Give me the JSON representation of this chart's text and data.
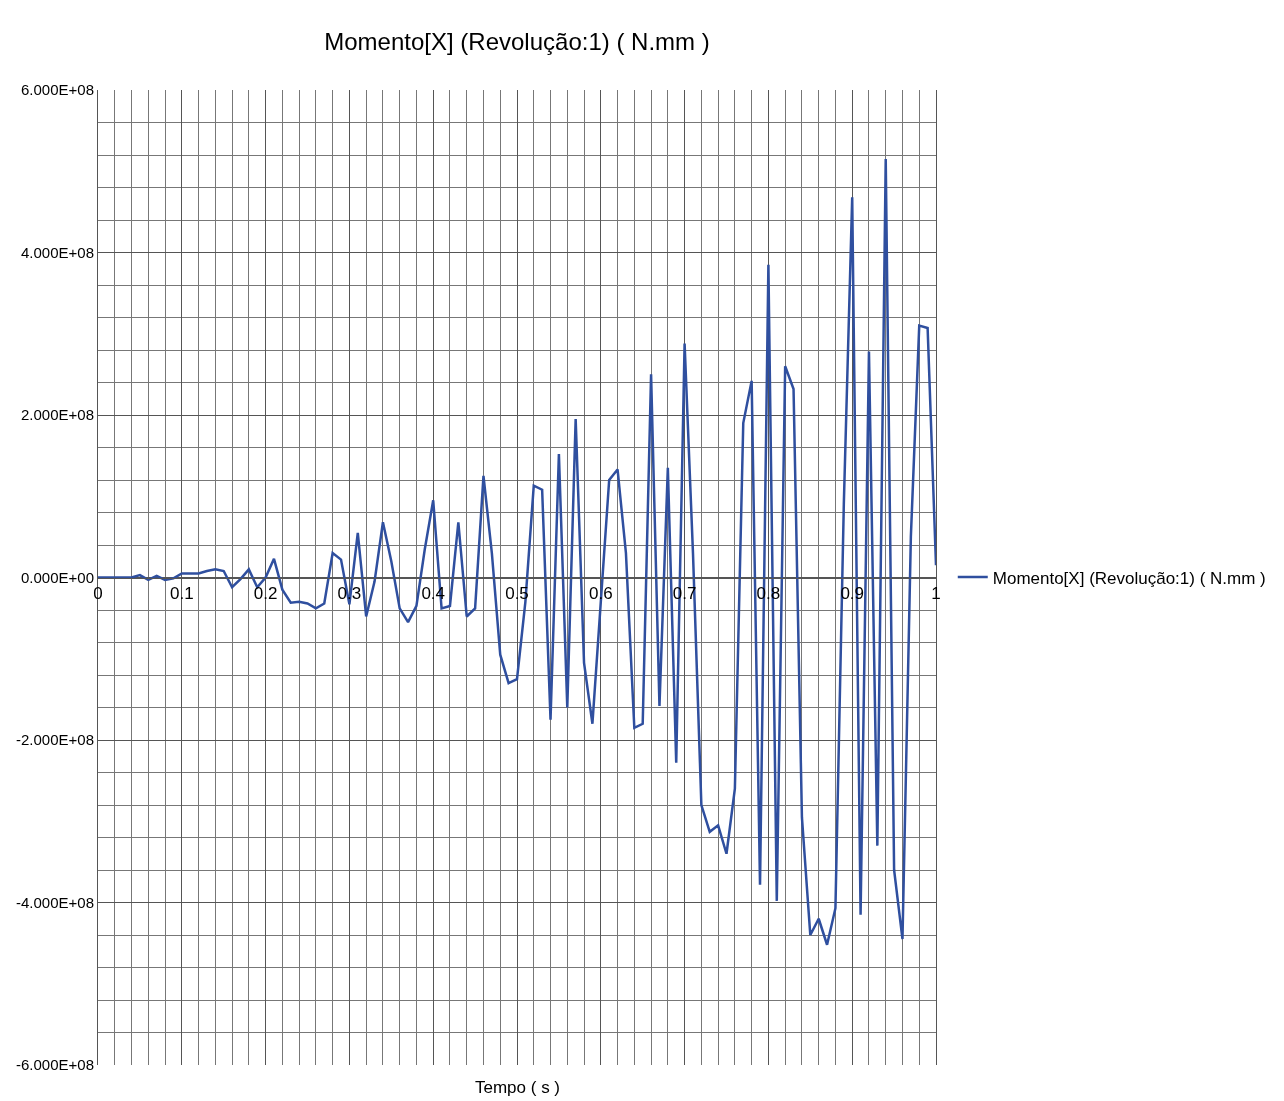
{
  "chart_data": {
    "type": "line",
    "title": "Momento[X] (Revolução:1) ( N.mm )",
    "xlabel": "Tempo ( s )",
    "x": [
      0,
      0.01,
      0.02,
      0.03,
      0.04,
      0.05,
      0.06,
      0.07,
      0.08,
      0.09,
      0.1,
      0.11,
      0.12,
      0.13,
      0.14,
      0.15,
      0.16,
      0.17,
      0.18,
      0.19,
      0.2,
      0.21,
      0.22,
      0.23,
      0.24,
      0.25,
      0.26,
      0.27,
      0.28,
      0.29,
      0.3,
      0.31,
      0.32,
      0.33,
      0.34,
      0.35,
      0.36,
      0.37,
      0.38,
      0.39,
      0.4,
      0.41,
      0.42,
      0.43,
      0.44,
      0.45,
      0.46,
      0.47,
      0.48,
      0.49,
      0.5,
      0.51,
      0.52,
      0.53,
      0.54,
      0.55,
      0.56,
      0.57,
      0.58,
      0.59,
      0.6,
      0.61,
      0.62,
      0.63,
      0.64,
      0.65,
      0.66,
      0.67,
      0.68,
      0.69,
      0.7,
      0.71,
      0.72,
      0.73,
      0.74,
      0.75,
      0.76,
      0.77,
      0.78,
      0.79,
      0.8,
      0.81,
      0.82,
      0.83,
      0.84,
      0.85,
      0.86,
      0.87,
      0.88,
      0.89,
      0.9,
      0.91,
      0.92,
      0.93,
      0.94,
      0.95,
      0.96,
      0.97,
      0.98,
      0.99,
      1
    ],
    "series": [
      {
        "name": "Momento[X] (Revolução:1) ( N.mm )",
        "color": "#2f4f9f",
        "values": [
          0,
          0,
          0,
          0,
          0,
          3000000.0,
          -3000000.0,
          2000000.0,
          -3000000.0,
          -1000000.0,
          5000000.0,
          5000000.0,
          5000000.0,
          8000000.0,
          10000000.0,
          8000000.0,
          -12000000.0,
          -2000000.0,
          10000000.0,
          -12000000.0,
          0,
          23000000.0,
          -15000000.0,
          -31000000.0,
          -30000000.0,
          -32000000.0,
          -38000000.0,
          -32000000.0,
          30000000.0,
          22000000.0,
          -33000000.0,
          55000000.0,
          -48000000.0,
          -5000000.0,
          68000000.0,
          20000000.0,
          -38000000.0,
          -55000000.0,
          -35000000.0,
          35000000.0,
          95000000.0,
          -38000000.0,
          -35000000.0,
          68000000.0,
          -48000000.0,
          -38000000.0,
          125000000.0,
          30000000.0,
          -95000000.0,
          -130000000.0,
          -125000000.0,
          -30000000.0,
          113000000.0,
          108000000.0,
          -175000000.0,
          152000000.0,
          -160000000.0,
          195000000.0,
          -105000000.0,
          -180000000.0,
          -30000000.0,
          120000000.0,
          133000000.0,
          30000000.0,
          -185000000.0,
          -180000000.0,
          250000000.0,
          -158000000.0,
          135000000.0,
          -228000000.0,
          288000000.0,
          30000000.0,
          -280000000.0,
          -313000000.0,
          -305000000.0,
          -340000000.0,
          -260000000.0,
          190000000.0,
          242000000.0,
          -378000000.0,
          385000000.0,
          -398000000.0,
          260000000.0,
          232000000.0,
          -295000000.0,
          -440000000.0,
          -420000000.0,
          -452000000.0,
          -407000000.0,
          90000000.0,
          468000000.0,
          -415000000.0,
          278000000.0,
          -330000000.0,
          515000000.0,
          -360000000.0,
          -445000000.0,
          50000000.0,
          310000000.0,
          307000000.0,
          15000000.0
        ]
      }
    ],
    "xlim": [
      0,
      1
    ],
    "xticks": [
      0,
      0.1,
      0.2,
      0.3,
      0.4,
      0.5,
      0.6,
      0.7,
      0.8,
      0.9,
      1
    ],
    "ylim": [
      -600000000.0,
      600000000.0
    ],
    "yticks": [
      {
        "value": -600000000.0,
        "label": "-6.000E+08"
      },
      {
        "value": -400000000.0,
        "label": "-4.000E+08"
      },
      {
        "value": -200000000.0,
        "label": "-2.000E+08"
      },
      {
        "value": 0,
        "label": "0.000E+00"
      },
      {
        "value": 200000000.0,
        "label": "2.000E+08"
      },
      {
        "value": 400000000.0,
        "label": "4.000E+08"
      },
      {
        "value": 600000000.0,
        "label": "6.000E+08"
      }
    ],
    "grid": true,
    "legend": "right",
    "marker": "none",
    "line_style": "solid"
  }
}
